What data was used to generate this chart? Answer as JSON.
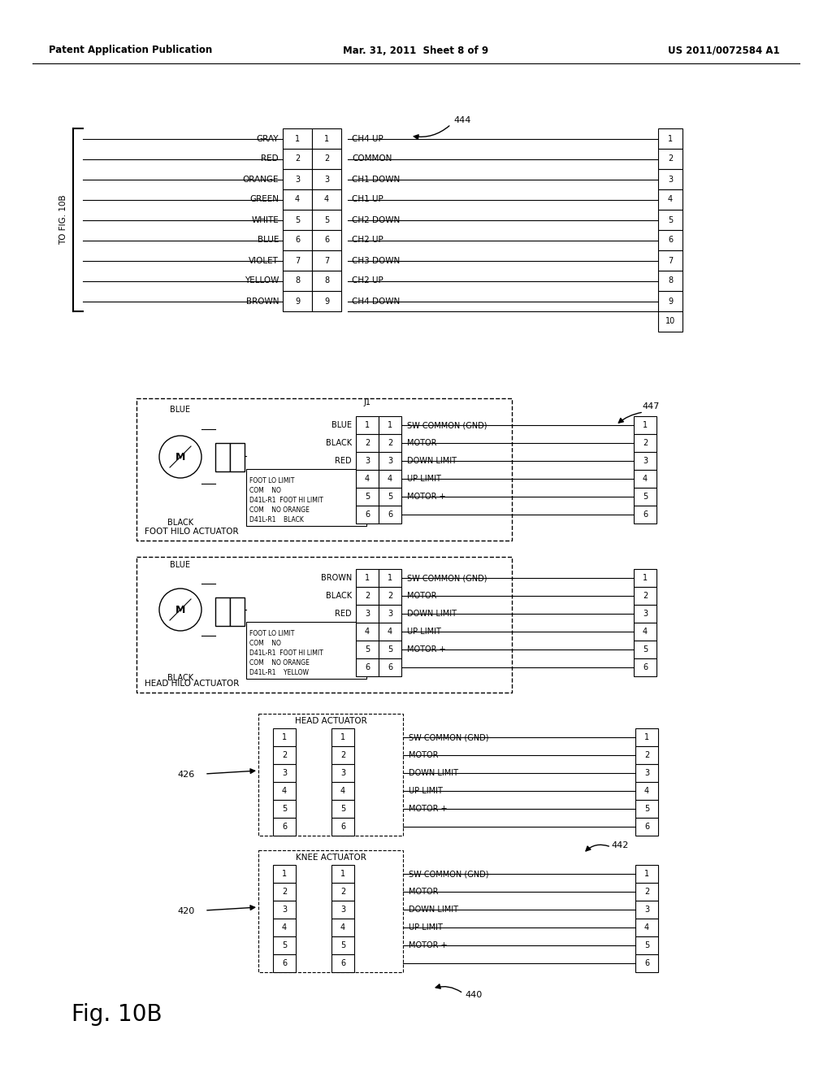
{
  "bg_color": "#ffffff",
  "header_left": "Patent Application Publication",
  "header_center": "Mar. 31, 2011  Sheet 8 of 9",
  "header_right": "US 2011/0072584 A1",
  "fig_label": "Fig. 10B",
  "diagram1": {
    "label_444": "444",
    "side_label": "TO FIG. 10B",
    "left_wires": [
      "GRAY",
      "RED",
      "ORANGE",
      "GREEN",
      "WHITE",
      "BLUE",
      "VIOLET",
      "YELLOW",
      "BROWN"
    ],
    "left_numbers": [
      "1",
      "2",
      "3",
      "4",
      "5",
      "6",
      "7",
      "8",
      "9"
    ],
    "right_labels": [
      "CH4 UP",
      "COMMON",
      "CH1 DOWN",
      "CH1 UP",
      "CH2 DOWN",
      "CH2 UP",
      "CH3 DOWN",
      "CH2 UP",
      "CH4 DOWN"
    ],
    "right_numbers_inner": [
      "1",
      "2",
      "3",
      "4",
      "5",
      "6",
      "7",
      "8",
      "9"
    ],
    "right_numbers_outer": [
      "1",
      "2",
      "3",
      "4",
      "5",
      "6",
      "7",
      "8",
      "9",
      "10"
    ]
  },
  "diagram2": {
    "label_447": "447",
    "box_label": "FOOT HILO ACTUATOR",
    "connector_label": "J1",
    "left_conn_labels": [
      "BLUE",
      "BLACK",
      "RED",
      "",
      ""
    ],
    "right_labels": [
      "SW COMMON (GND)",
      "MOTOR -",
      "DOWN LIMIT",
      "UP LIMIT",
      "MOTOR +"
    ]
  },
  "diagram3": {
    "box_label": "HEAD HILO ACTUATOR",
    "left_conn_labels": [
      "BROWN",
      "BLACK",
      "RED",
      "",
      ""
    ],
    "right_labels": [
      "SW COMMON (GND)",
      "MOTOR -",
      "DOWN LIMIT",
      "UP LIMIT",
      "MOTOR +"
    ]
  },
  "diagram4": {
    "label_426": "426",
    "label_420": "420",
    "label_442": "442",
    "label_440": "440",
    "box1_label": "HEAD ACTUATOR",
    "box2_label": "KNEE ACTUATOR",
    "right_labels": [
      "SW COMMON (GND)",
      "MOTOR -",
      "DOWN LIMIT",
      "UP LIMIT",
      "MOTOR +"
    ]
  }
}
